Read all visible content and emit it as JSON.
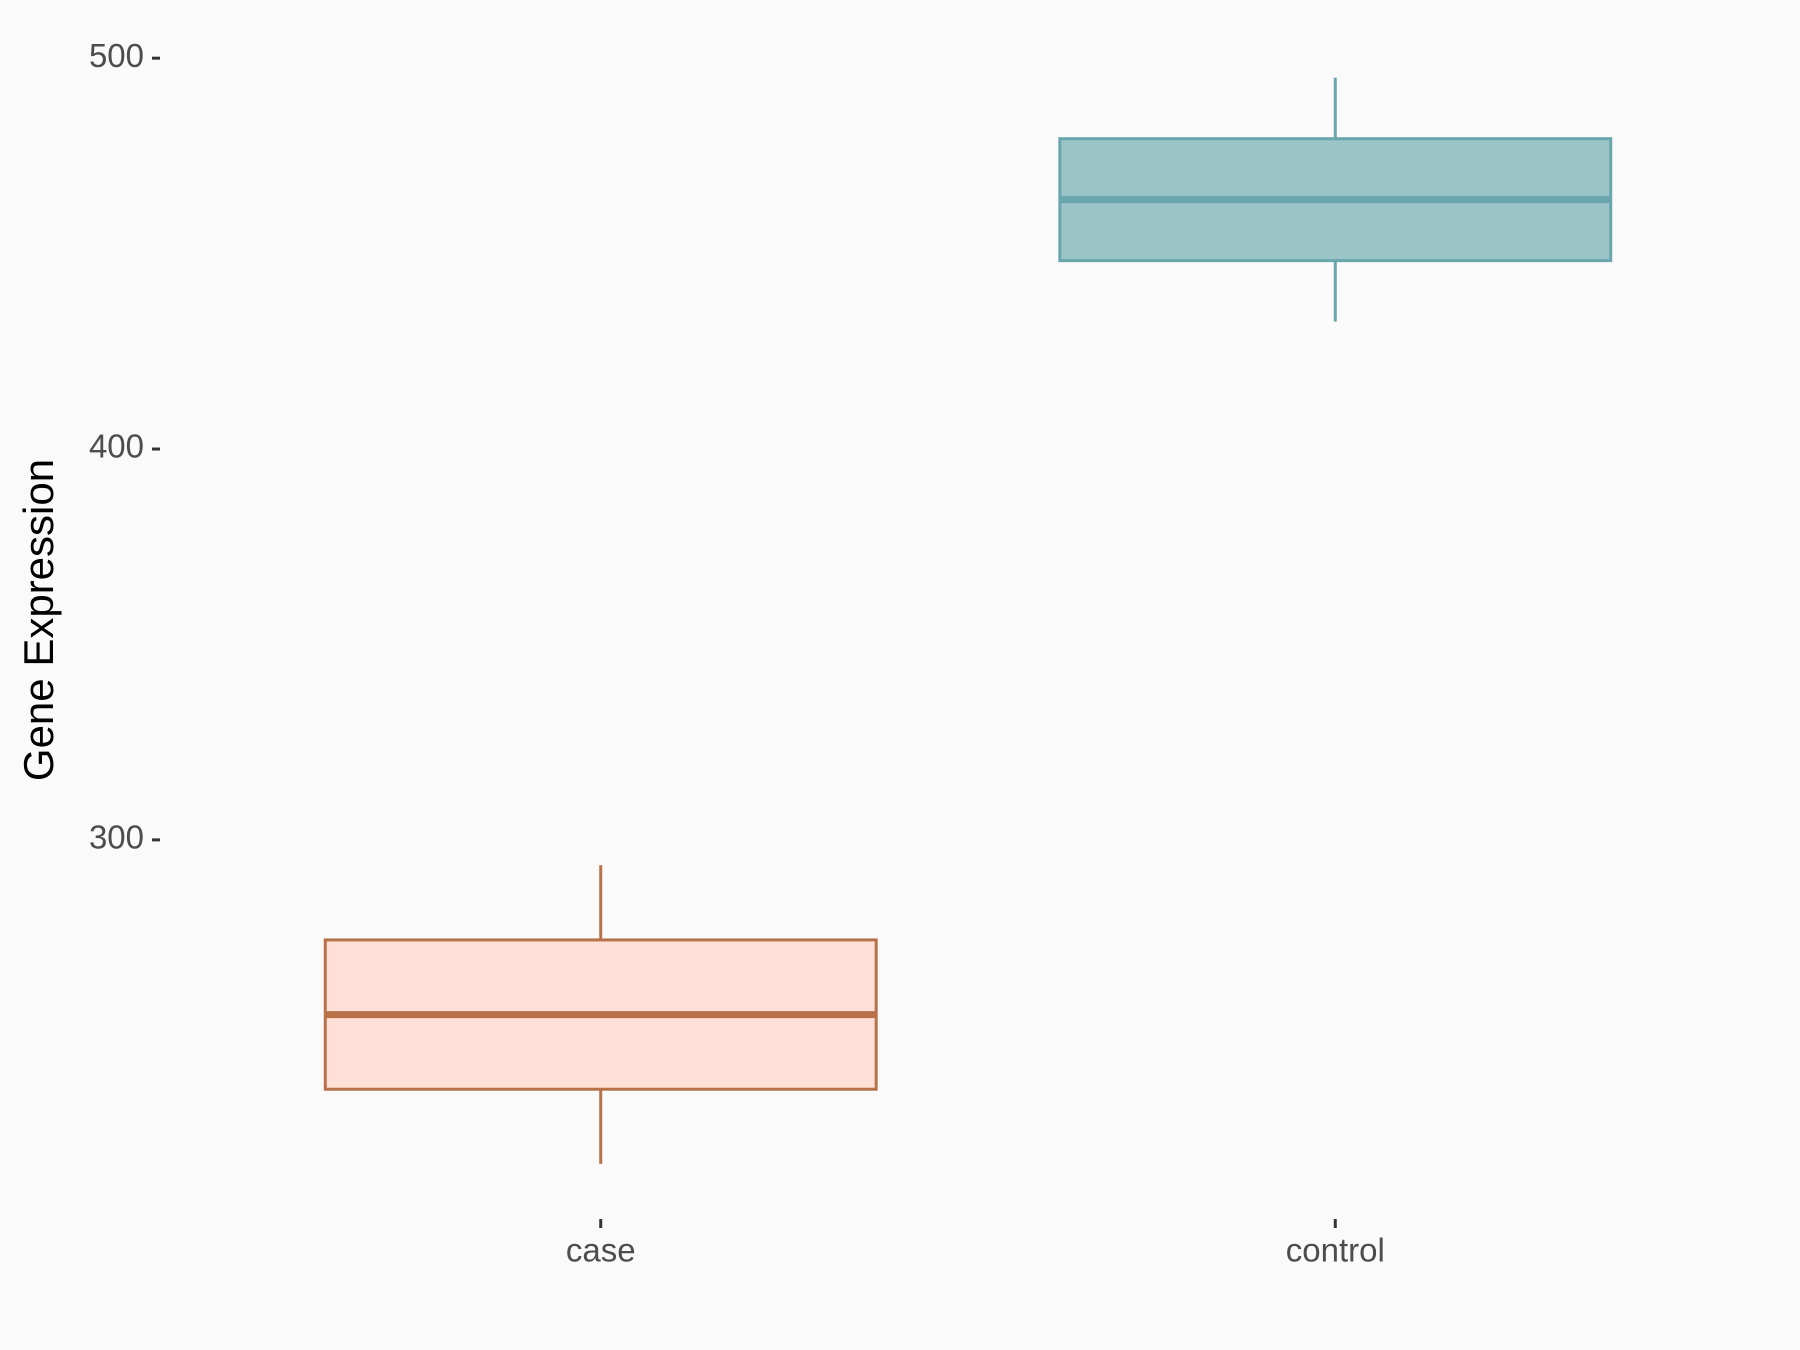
{
  "chart_data": {
    "type": "box",
    "y_label": "Gene Expression",
    "categories": [
      "case",
      "control"
    ],
    "boxes": [
      {
        "min": 217.1,
        "q1": 236.2,
        "median": 255.3,
        "q3": 274.4,
        "max": 293.5,
        "color": "#b8724a",
        "fill": "#ffe0d6"
      },
      {
        "min": 432.6,
        "q1": 448.2,
        "median": 463.8,
        "q3": 479.4,
        "max": 495,
        "color": "#6aa6ad",
        "fill": "#9bc4c7"
      }
    ],
    "ylim": [
      203,
      509
    ],
    "yticks": [
      300,
      400,
      500
    ],
    "grid": false
  }
}
